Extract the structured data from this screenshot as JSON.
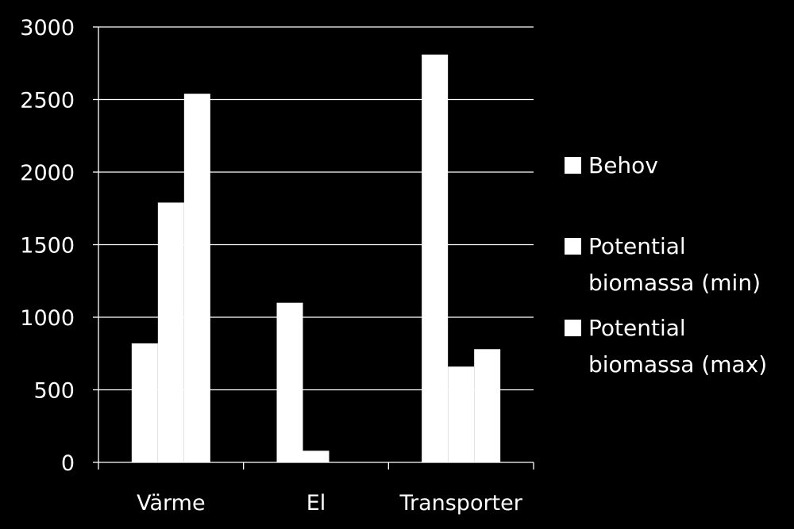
{
  "chart_data": {
    "type": "bar",
    "categories": [
      "Värme",
      "El",
      "Transporter"
    ],
    "series": [
      {
        "name": "Behov",
        "values": [
          820,
          1100,
          2810
        ]
      },
      {
        "name": "Potential biomassa (min)",
        "values": [
          1790,
          80,
          660
        ]
      },
      {
        "name": "Potential biomassa (max)",
        "values": [
          2540,
          0,
          780
        ]
      }
    ],
    "legend": [
      {
        "lines": [
          "Behov"
        ]
      },
      {
        "lines": [
          "Potential",
          "biomassa (min)"
        ]
      },
      {
        "lines": [
          "Potential",
          "biomassa (max)"
        ]
      }
    ],
    "y_ticks": [
      "0",
      "500",
      "1000",
      "1500",
      "2000",
      "2500",
      "3000"
    ],
    "ylim": [
      0,
      3000
    ],
    "grid": true,
    "legend_position": "right",
    "colors": {
      "background": "#000000",
      "bars": "#ffffff",
      "grid": "#ffffff",
      "text": "#ffffff"
    }
  }
}
